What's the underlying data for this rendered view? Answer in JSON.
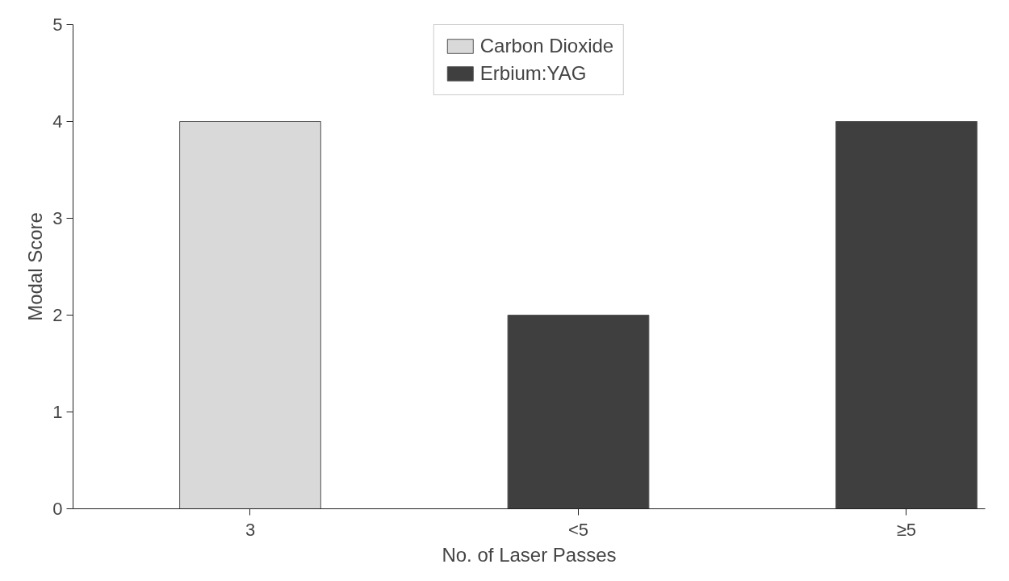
{
  "chart_data": {
    "type": "bar",
    "xlabel": "No. of Laser Passes",
    "ylabel": "Modal Score",
    "categories": [
      "3",
      "<5",
      "≥5"
    ],
    "series": [
      {
        "name": "Carbon Dioxide",
        "color": "#d9d9d9",
        "values": [
          4,
          null,
          null
        ]
      },
      {
        "name": "Erbium:YAG",
        "color": "#3f3f3f",
        "values": [
          null,
          2,
          4
        ]
      }
    ],
    "ylim": [
      0,
      5
    ],
    "yticks": [
      0,
      1,
      2,
      3,
      4,
      5
    ],
    "grid": false,
    "legend": "top"
  }
}
